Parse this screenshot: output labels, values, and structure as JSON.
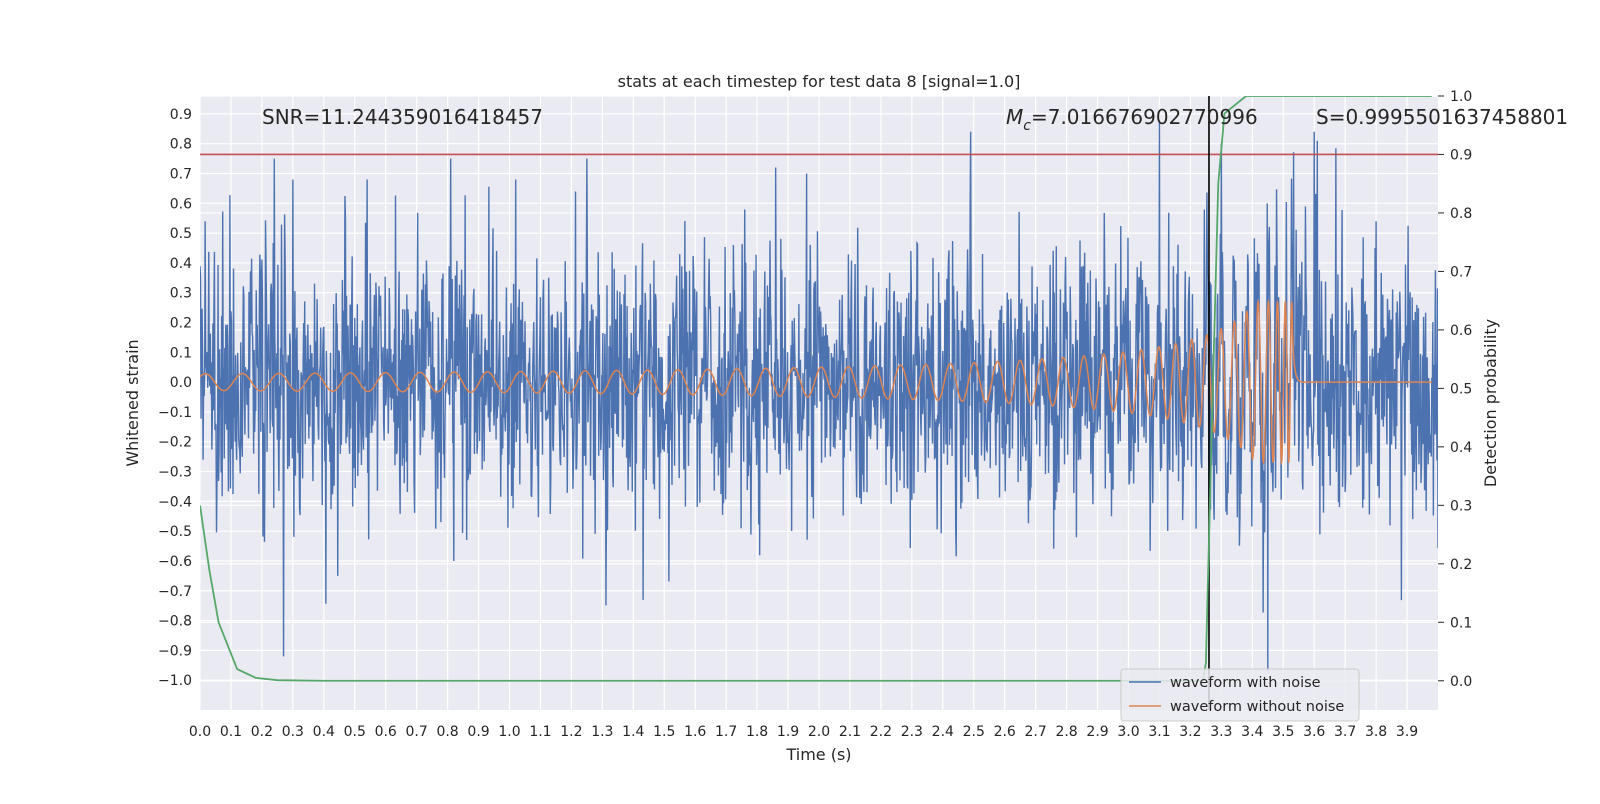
{
  "chart_data": {
    "type": "line",
    "title": "stats at each timestep for test data 8 [signal=1.0]",
    "xlabel": "Time (s)",
    "ylabel_left": "Whitened strain",
    "ylabel_right": "Detection probability",
    "xlim": [
      0.0,
      4.0
    ],
    "ylim_left": [
      -1.1,
      0.96
    ],
    "ylim_right": [
      -0.05,
      1.0
    ],
    "xticks": [
      "0.0",
      "0.1",
      "0.2",
      "0.3",
      "0.4",
      "0.5",
      "0.6",
      "0.7",
      "0.8",
      "0.9",
      "1.0",
      "1.1",
      "1.2",
      "1.3",
      "1.4",
      "1.5",
      "1.6",
      "1.7",
      "1.8",
      "1.9",
      "2.0",
      "2.1",
      "2.2",
      "2.3",
      "2.4",
      "2.5",
      "2.6",
      "2.7",
      "2.8",
      "2.9",
      "3.0",
      "3.1",
      "3.2",
      "3.3",
      "3.4",
      "3.5",
      "3.6",
      "3.7",
      "3.8",
      "3.9"
    ],
    "yticks_left": [
      "0.9",
      "0.8",
      "0.7",
      "0.6",
      "0.5",
      "0.4",
      "0.3",
      "0.2",
      "0.1",
      "0.0",
      "−0.1",
      "−0.2",
      "−0.3",
      "−0.4",
      "−0.5",
      "−0.6",
      "−0.7",
      "−0.8",
      "−0.9",
      "−1.0"
    ],
    "yticks_right": [
      "1.0",
      "0.9",
      "0.8",
      "0.7",
      "0.6",
      "0.5",
      "0.4",
      "0.3",
      "0.2",
      "0.1",
      "0.0"
    ],
    "annotations": {
      "snr": "SNR=11.244359016418457",
      "mc_symbol": "M",
      "mc_sub": "c",
      "mc_value": "=7.016676902770996",
      "s": "S=0.9995501637458801"
    },
    "threshold_right": 0.9,
    "merger_time": 3.26,
    "series": [
      {
        "name": "waveform with noise",
        "color": "#4c72b0",
        "axis": "left",
        "noise_std": 0.22,
        "x": [
          0.24,
          0.27,
          0.3,
          0.54,
          0.81,
          0.82,
          1.02,
          1.25,
          1.86,
          1.96,
          2.49,
          3.1,
          3.3,
          3.45,
          3.6,
          3.61
        ],
        "y": [
          0.75,
          -0.92,
          0.68,
          0.68,
          0.75,
          -0.6,
          0.68,
          0.75,
          0.72,
          0.7,
          0.84,
          0.87,
          0.8,
          -0.97,
          0.84,
          0.81
        ]
      },
      {
        "name": "waveform without noise",
        "color": "#dd8452",
        "axis": "left",
        "amplitude_start": 0.028,
        "amplitude_peak": 0.27,
        "peak_time": 3.53,
        "end_time": 3.56
      },
      {
        "name": "detection probability",
        "color": "#55a868",
        "axis": "right",
        "x": [
          0.0,
          0.03,
          0.06,
          0.12,
          0.18,
          0.25,
          0.4,
          1.0,
          2.0,
          3.0,
          3.24,
          3.25,
          3.27,
          3.29,
          3.31,
          3.38,
          3.5,
          3.98
        ],
        "y": [
          0.3,
          0.19,
          0.1,
          0.02,
          0.005,
          0.001,
          0.0,
          0.0,
          0.0,
          0.0,
          0.0,
          0.03,
          0.45,
          0.85,
          0.97,
          1.0,
          1.0,
          1.0
        ]
      }
    ],
    "legend": {
      "position": "lower right",
      "entries": [
        "waveform with noise",
        "waveform without noise"
      ]
    },
    "colors": {
      "threshold": "#c44e52",
      "merger": "#000000",
      "background": "#eaeaf2"
    }
  }
}
